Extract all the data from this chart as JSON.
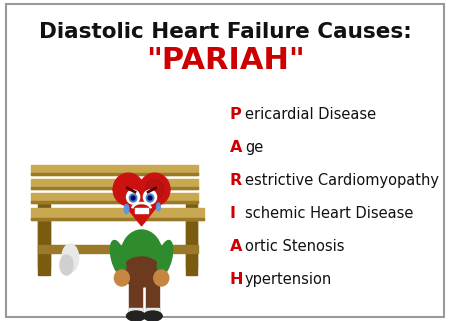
{
  "title_line1": "Diastolic Heart Failure Causes:",
  "title_line2": "\"PARIAH\"",
  "title_color": "#111111",
  "pariah_color": "#cc0000",
  "bg_color": "#ffffff",
  "border_color": "#999999",
  "items": [
    {
      "letter": "P",
      "rest": "ericardial Disease"
    },
    {
      "letter": "A",
      "rest": "ge"
    },
    {
      "letter": "R",
      "rest": "estrictive Cardiomyopathy"
    },
    {
      "letter": "I",
      "rest": "schemic Heart Disease"
    },
    {
      "letter": "A",
      "rest": "ortic Stenosis"
    },
    {
      "letter": "H",
      "rest": "ypertension"
    }
  ],
  "letter_color": "#cc0000",
  "text_color": "#111111",
  "title_fontsize": 15.5,
  "pariah_fontsize": 22,
  "item_fontsize": 10.5,
  "figsize": [
    4.74,
    3.21
  ],
  "dpi": 100,
  "bench_color": "#c8a850",
  "bench_shadow": "#9a7a28",
  "bench_dark": "#7a5c10",
  "heart_color": "#cc1111",
  "heart_dark": "#991111",
  "body_color": "#2e8b2e",
  "pants_color": "#6b3a1f",
  "skin_color": "#c68642"
}
